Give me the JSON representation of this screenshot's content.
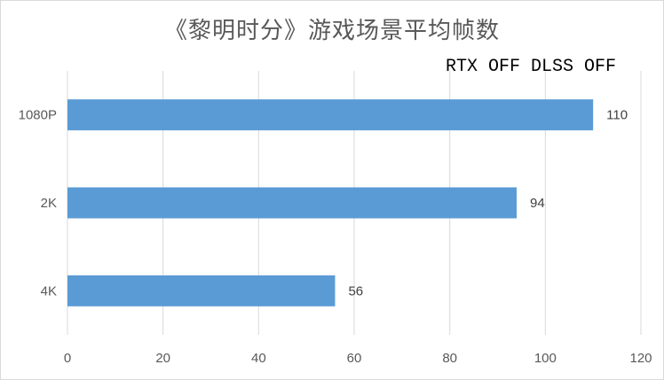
{
  "chart_data": {
    "type": "bar",
    "orientation": "horizontal",
    "title": "《黎明时分》游戏场景平均帧数",
    "annotation": "RTX OFF DLSS OFF",
    "categories": [
      "1080P",
      "2K",
      "4K"
    ],
    "values": [
      110,
      94,
      56
    ],
    "data_labels": [
      "110",
      "94",
      "56"
    ],
    "xlim": [
      0,
      120
    ],
    "x_ticks": [
      0,
      20,
      40,
      60,
      80,
      100,
      120
    ],
    "x_tick_labels": [
      "0",
      "20",
      "40",
      "60",
      "80",
      "100",
      "120"
    ],
    "xlabel": "",
    "ylabel": "",
    "grid": "vertical",
    "bar_color": "#5B9BD5",
    "grid_color": "#D9D9D9"
  }
}
